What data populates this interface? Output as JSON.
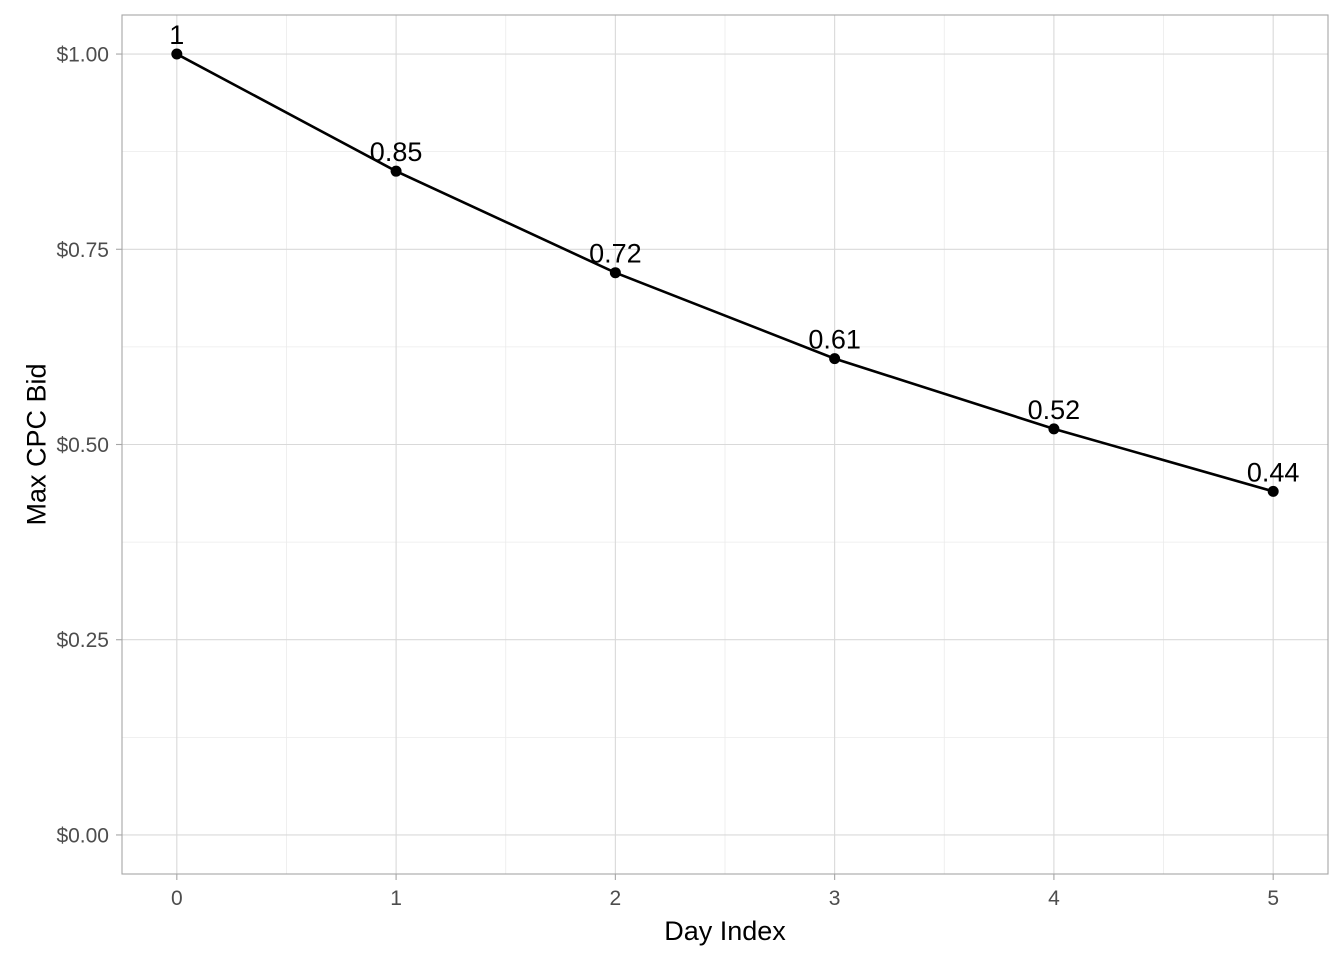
{
  "chart_data": {
    "type": "line",
    "title": "",
    "xlabel": "Day Index",
    "ylabel": "Max CPC Bid",
    "x": [
      0,
      1,
      2,
      3,
      4,
      5
    ],
    "values": [
      1.0,
      0.85,
      0.72,
      0.61,
      0.52,
      0.44
    ],
    "data_labels": [
      "1",
      "0.85",
      "0.72",
      "0.61",
      "0.52",
      "0.44"
    ],
    "xlim": [
      -0.25,
      5.25
    ],
    "ylim": [
      -0.05,
      1.05
    ],
    "x_ticks": [
      0,
      1,
      2,
      3,
      4,
      5
    ],
    "x_tick_labels": [
      "0",
      "1",
      "2",
      "3",
      "4",
      "5"
    ],
    "y_ticks": [
      0,
      0.25,
      0.5,
      0.75,
      1.0
    ],
    "y_tick_labels": [
      "$0.00",
      "$0.25",
      "$0.50",
      "$0.75",
      "$1.00"
    ],
    "grid": true,
    "legend": "none",
    "colors": {
      "line": "#000000",
      "point": "#000000",
      "grid_major": "#d9d9d9",
      "grid_minor": "#ebebeb",
      "panel_border": "#a6a6a6",
      "tick_label": "#4d4d4d"
    }
  }
}
